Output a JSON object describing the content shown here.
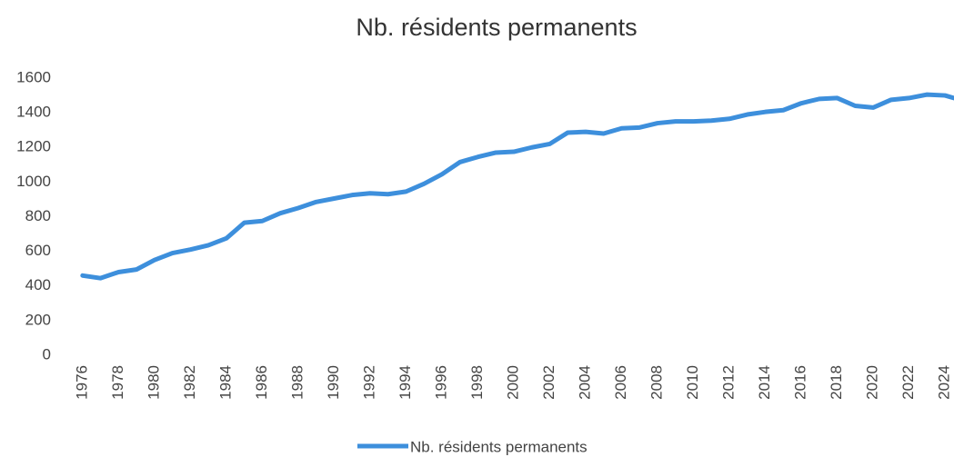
{
  "chart_data": {
    "type": "line",
    "title": "Nb. résidents permanents",
    "x": [
      1976,
      1977,
      1978,
      1979,
      1980,
      1981,
      1982,
      1983,
      1984,
      1985,
      1986,
      1987,
      1988,
      1989,
      1990,
      1991,
      1992,
      1993,
      1994,
      1995,
      1996,
      1997,
      1998,
      1999,
      2000,
      2001,
      2002,
      2003,
      2004,
      2005,
      2006,
      2007,
      2008,
      2009,
      2010,
      2011,
      2012,
      2013,
      2014,
      2015,
      2016,
      2017,
      2018,
      2019,
      2020,
      2021,
      2022,
      2023,
      2024,
      2025
    ],
    "series": [
      {
        "name": "Nb. résidents permanents",
        "color": "#3d8fdc",
        "values": [
          460,
          445,
          480,
          495,
          550,
          590,
          610,
          635,
          675,
          765,
          775,
          820,
          850,
          885,
          905,
          925,
          935,
          930,
          945,
          990,
          1045,
          1115,
          1145,
          1170,
          1175,
          1200,
          1220,
          1285,
          1290,
          1280,
          1310,
          1315,
          1340,
          1350,
          1350,
          1355,
          1365,
          1390,
          1405,
          1415,
          1455,
          1480,
          1485,
          1440,
          1430,
          1475,
          1485,
          1505,
          1500,
          1470
        ]
      }
    ],
    "xlim": [
      1975.3,
      2024.5
    ],
    "xticks": [
      1976,
      1978,
      1980,
      1982,
      1984,
      1986,
      1988,
      1990,
      1992,
      1994,
      1996,
      1998,
      2000,
      2002,
      2004,
      2006,
      2008,
      2010,
      2012,
      2014,
      2016,
      2018,
      2020,
      2022,
      2024
    ],
    "ylim": [
      0,
      1600
    ],
    "yticks": [
      0,
      200,
      400,
      600,
      800,
      1000,
      1200,
      1400,
      1600
    ],
    "grid": false,
    "legend": "bottom"
  }
}
